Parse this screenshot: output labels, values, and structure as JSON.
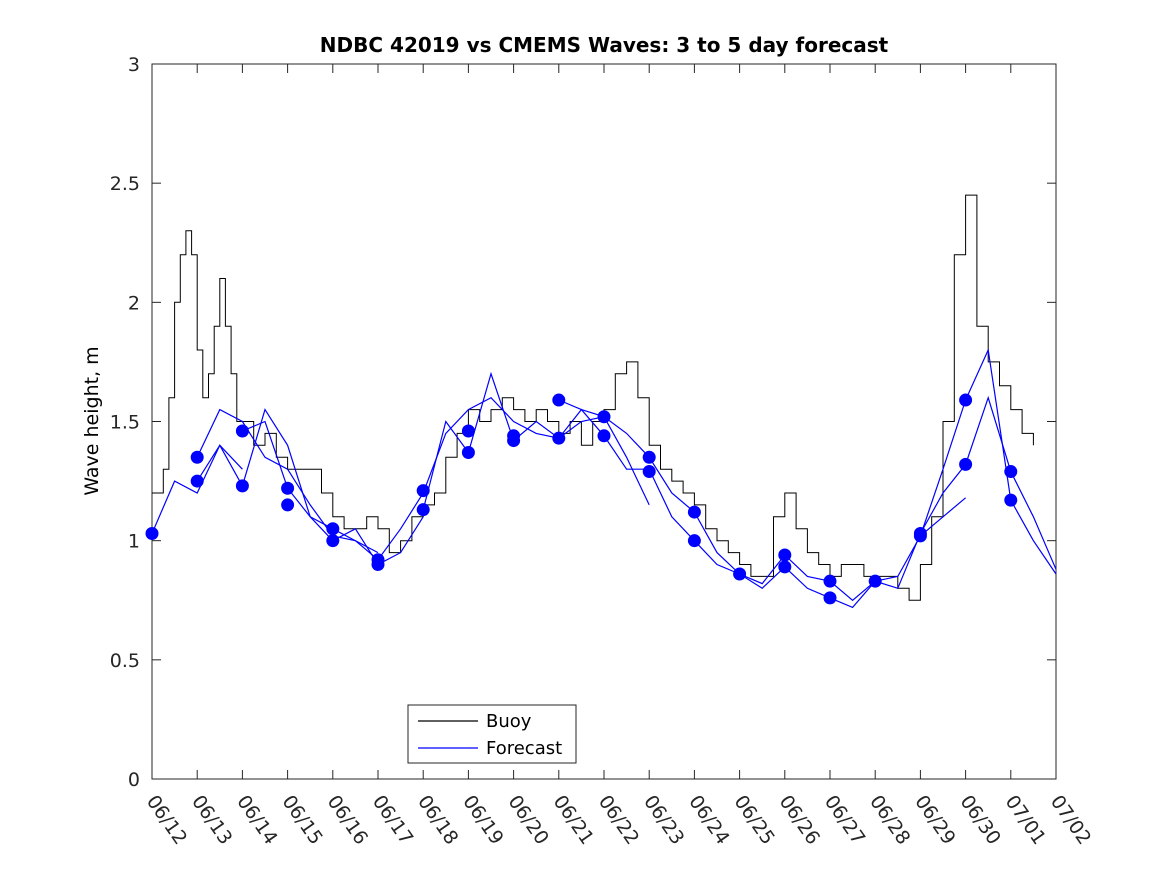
{
  "chart_data": {
    "type": "line",
    "title": "NDBC 42019 vs CMEMS Waves: 3 to 5 day forecast",
    "xlabel": "",
    "ylabel": "Wave height, m",
    "x_unit": "date (MM/DD)",
    "xlim": [
      "06/12",
      "07/02"
    ],
    "ylim": [
      0,
      3
    ],
    "yticks": [
      0,
      0.5,
      1,
      1.5,
      2,
      2.5,
      3
    ],
    "ytick_labels": [
      "0",
      "0.5",
      "1",
      "1.5",
      "2",
      "2.5",
      "3"
    ],
    "xtick_labels": [
      "06/12",
      "06/13",
      "06/14",
      "06/15",
      "06/16",
      "06/17",
      "06/18",
      "06/19",
      "06/20",
      "06/21",
      "06/22",
      "06/23",
      "06/24",
      "06/25",
      "06/26",
      "06/27",
      "06/28",
      "06/29",
      "06/30",
      "07/01",
      "07/02"
    ],
    "grid": false,
    "legend": {
      "position": "lower-center",
      "entries": [
        "Buoy",
        "Forecast"
      ]
    },
    "colors": {
      "buoy": "#000000",
      "forecast": "#0000ff"
    },
    "series": [
      {
        "name": "Buoy",
        "x": [
          "06/12 00:00",
          "06/12 06:00",
          "06/12 09:00",
          "06/12 12:00",
          "06/12 15:00",
          "06/12 18:00",
          "06/12 21:00",
          "06/13 00:00",
          "06/13 03:00",
          "06/13 06:00",
          "06/13 09:00",
          "06/13 12:00",
          "06/13 15:00",
          "06/13 18:00",
          "06/13 21:00",
          "06/14 00:00",
          "06/14 06:00",
          "06/14 12:00",
          "06/14 18:00",
          "06/15 00:00",
          "06/15 06:00",
          "06/15 12:00",
          "06/15 18:00",
          "06/16 00:00",
          "06/16 06:00",
          "06/16 12:00",
          "06/16 18:00",
          "06/17 00:00",
          "06/17 06:00",
          "06/17 12:00",
          "06/17 18:00",
          "06/18 00:00",
          "06/18 06:00",
          "06/18 12:00",
          "06/18 18:00",
          "06/19 00:00",
          "06/19 06:00",
          "06/19 12:00",
          "06/19 18:00",
          "06/20 00:00",
          "06/20 06:00",
          "06/20 12:00",
          "06/20 18:00",
          "06/21 00:00",
          "06/21 06:00",
          "06/21 12:00",
          "06/21 18:00",
          "06/22 00:00",
          "06/22 06:00",
          "06/22 12:00",
          "06/22 18:00",
          "06/23 00:00",
          "06/23 06:00",
          "06/23 12:00",
          "06/23 18:00",
          "06/24 00:00",
          "06/24 06:00",
          "06/24 12:00",
          "06/24 18:00",
          "06/25 00:00",
          "06/25 06:00",
          "06/25 12:00",
          "06/25 18:00",
          "06/26 00:00",
          "06/26 06:00",
          "06/26 12:00",
          "06/26 18:00",
          "06/27 00:00",
          "06/27 06:00",
          "06/27 12:00",
          "06/27 18:00",
          "06/28 00:00",
          "06/28 06:00",
          "06/28 12:00",
          "06/28 18:00",
          "06/29 00:00",
          "06/29 06:00",
          "06/29 12:00",
          "06/29 18:00",
          "06/30 00:00",
          "06/30 06:00",
          "06/30 12:00",
          "06/30 18:00",
          "07/01 00:00",
          "07/01 06:00",
          "07/01 12:00"
        ],
        "y": [
          1.2,
          1.3,
          1.6,
          2.0,
          2.2,
          2.3,
          2.2,
          1.8,
          1.6,
          1.7,
          1.9,
          2.1,
          1.9,
          1.7,
          1.5,
          1.5,
          1.4,
          1.45,
          1.35,
          1.3,
          1.3,
          1.3,
          1.2,
          1.1,
          1.05,
          1.05,
          1.1,
          1.05,
          0.95,
          1.0,
          1.1,
          1.15,
          1.2,
          1.35,
          1.45,
          1.55,
          1.5,
          1.55,
          1.6,
          1.55,
          1.5,
          1.55,
          1.5,
          1.45,
          1.5,
          1.4,
          1.5,
          1.55,
          1.7,
          1.75,
          1.6,
          1.4,
          1.3,
          1.25,
          1.2,
          1.15,
          1.05,
          1.0,
          0.95,
          0.9,
          0.85,
          0.85,
          1.1,
          1.2,
          1.05,
          0.95,
          0.9,
          0.85,
          0.9,
          0.9,
          0.85,
          0.85,
          0.85,
          0.8,
          0.75,
          0.9,
          1.1,
          1.5,
          2.2,
          2.45,
          1.9,
          1.75,
          1.65,
          1.55,
          1.45,
          1.4
        ]
      },
      {
        "name": "Forecast",
        "runs": [
          {
            "x": [
              "06/12 00:00",
              "06/12 12:00",
              "06/13 00:00",
              "06/13 12:00",
              "06/14 00:00"
            ],
            "y": [
              1.03,
              1.25,
              1.2,
              1.4,
              1.3
            ]
          },
          {
            "x": [
              "06/13 00:00",
              "06/13 12:00",
              "06/14 00:00",
              "06/14 12:00",
              "06/15 00:00",
              "06/15 12:00",
              "06/16 00:00",
              "06/16 12:00",
              "06/17 00:00"
            ],
            "y": [
              1.35,
              1.55,
              1.5,
              1.35,
              1.3,
              1.15,
              1.02,
              1.0,
              0.95
            ]
          },
          {
            "x": [
              "06/13 00:00",
              "06/13 12:00",
              "06/14 00:00",
              "06/14 12:00",
              "06/15 00:00",
              "06/15 12:00",
              "06/16 00:00",
              "06/16 12:00",
              "06/17 00:00",
              "06/17 12:00",
              "06/18 00:00"
            ],
            "y": [
              1.25,
              1.4,
              1.23,
              1.55,
              1.4,
              1.1,
              1.0,
              1.05,
              0.9,
              0.95,
              1.1
            ]
          },
          {
            "x": [
              "06/14 00:00",
              "06/14 12:00",
              "06/15 00:00",
              "06/15 12:00",
              "06/16 00:00",
              "06/16 12:00",
              "06/17 00:00",
              "06/17 12:00",
              "06/18 00:00",
              "06/18 12:00",
              "06/19 00:00",
              "06/19 12:00",
              "06/20 00:00",
              "06/20 12:00",
              "06/21 00:00",
              "06/21 12:00",
              "06/22 00:00",
              "06/22 12:00",
              "06/23 00:00"
            ],
            "y": [
              1.46,
              1.5,
              1.22,
              1.1,
              1.05,
              1.0,
              0.92,
              1.05,
              1.2,
              1.45,
              1.55,
              1.6,
              1.5,
              1.45,
              1.43,
              1.5,
              1.52,
              1.35,
              1.15
            ]
          },
          {
            "x": [
              "06/18 00:00",
              "06/18 12:00",
              "06/19 00:00",
              "06/19 12:00",
              "06/20 00:00",
              "06/20 12:00",
              "06/21 00:00",
              "06/21 12:00",
              "06/22 00:00",
              "06/22 12:00",
              "06/23 00:00",
              "06/23 12:00",
              "06/24 00:00",
              "06/24 12:00",
              "06/25 00:00",
              "06/25 12:00",
              "06/26 00:00",
              "06/26 12:00",
              "06/27 00:00",
              "06/27 12:00",
              "06/28 00:00",
              "06/28 12:00",
              "06/29 00:00",
              "06/29 12:00",
              "06/30 00:00"
            ],
            "y": [
              1.13,
              1.5,
              1.37,
              1.7,
              1.42,
              1.5,
              1.43,
              1.55,
              1.44,
              1.3,
              1.3,
              1.1,
              1.0,
              0.9,
              0.86,
              0.8,
              0.89,
              0.8,
              0.76,
              0.72,
              0.83,
              0.85,
              1.02,
              1.1,
              1.18
            ]
          },
          {
            "x": [
              "06/21 00:00",
              "06/21 12:00",
              "06/22 00:00",
              "06/22 12:00",
              "06/23 00:00",
              "06/23 12:00",
              "06/24 00:00",
              "06/24 12:00",
              "06/25 00:00",
              "06/25 12:00",
              "06/26 00:00",
              "06/26 12:00",
              "06/27 00:00",
              "06/27 12:00",
              "06/28 00:00",
              "06/28 12:00",
              "06/29 00:00",
              "06/29 12:00",
              "06/30 00:00",
              "06/30 12:00",
              "07/01 00:00",
              "07/01 12:00",
              "07/02 00:00"
            ],
            "y": [
              1.59,
              1.55,
              1.52,
              1.45,
              1.35,
              1.2,
              1.12,
              0.95,
              0.86,
              0.82,
              0.94,
              0.85,
              0.83,
              0.75,
              0.83,
              0.8,
              1.03,
              1.2,
              1.32,
              1.6,
              1.29,
              1.1,
              0.88
            ]
          },
          {
            "x": [
              "06/29 00:00",
              "06/29 12:00",
              "06/30 00:00",
              "06/30 12:00",
              "07/01 00:00",
              "07/01 12:00",
              "07/02 00:00"
            ],
            "y": [
              1.02,
              1.3,
              1.59,
              1.8,
              1.17,
              1.0,
              0.86
            ]
          }
        ],
        "forecast_points": {
          "x": [
            "06/12 00:00",
            "06/13 00:00",
            "06/13 00:00",
            "06/14 00:00",
            "06/14 00:00",
            "06/15 00:00",
            "06/15 00:00",
            "06/16 00:00",
            "06/16 00:00",
            "06/17 00:00",
            "06/17 00:00",
            "06/18 00:00",
            "06/18 00:00",
            "06/19 00:00",
            "06/19 00:00",
            "06/20 00:00",
            "06/20 00:00",
            "06/21 00:00",
            "06/21 00:00",
            "06/22 00:00",
            "06/22 00:00",
            "06/23 00:00",
            "06/23 00:00",
            "06/24 00:00",
            "06/24 00:00",
            "06/25 00:00",
            "06/26 00:00",
            "06/26 00:00",
            "06/27 00:00",
            "06/27 00:00",
            "06/28 00:00",
            "06/29 00:00",
            "06/29 00:00",
            "06/30 00:00",
            "06/30 00:00",
            "07/01 00:00",
            "07/01 00:00"
          ],
          "y": [
            1.03,
            1.35,
            1.25,
            1.46,
            1.23,
            1.22,
            1.15,
            1.05,
            1.0,
            0.92,
            0.9,
            1.21,
            1.13,
            1.46,
            1.37,
            1.44,
            1.42,
            1.59,
            1.43,
            1.52,
            1.44,
            1.35,
            1.29,
            1.12,
            1.0,
            0.86,
            0.94,
            0.89,
            0.83,
            0.76,
            0.83,
            1.03,
            1.02,
            1.59,
            1.32,
            1.29,
            1.17
          ]
        }
      }
    ]
  }
}
